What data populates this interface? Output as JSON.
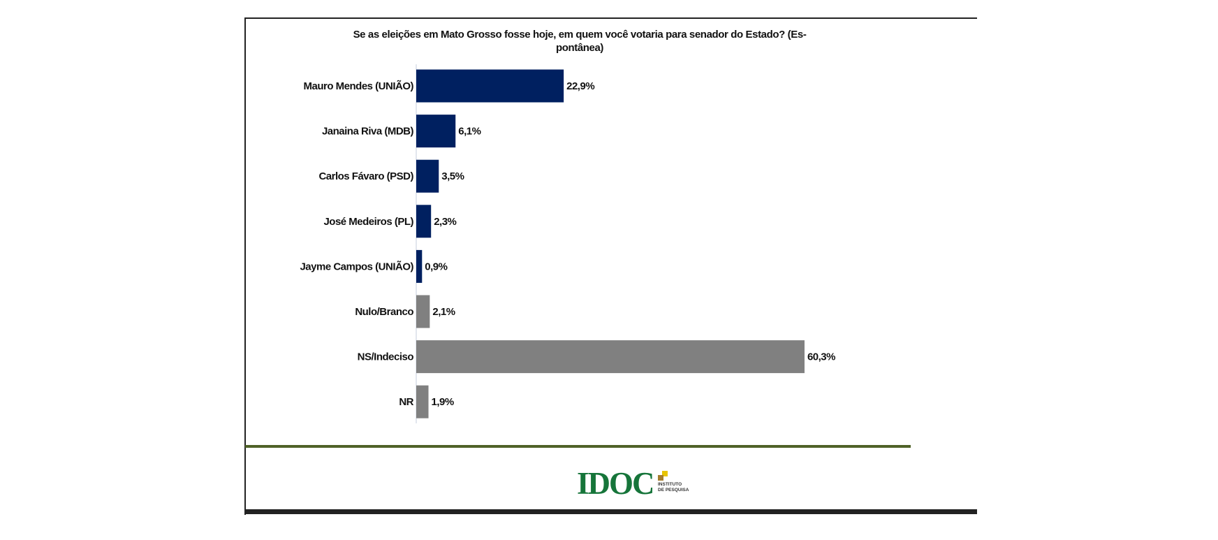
{
  "chart_data": {
    "type": "bar",
    "orientation": "horizontal",
    "title": "Se as eleições em Mato Grosso fosse hoje, em quem você votaria para senador do Estado? (Es-pontânea)",
    "title_lines": [
      "Se as eleições em Mato Grosso fosse hoje, em quem você votaria para senador do Estado? (Es-",
      "pontânea)"
    ],
    "categories": [
      "Mauro Mendes (UNIÃO)",
      "Janaina Riva (MDB)",
      "Carlos Fávaro (PSD)",
      "José Medeiros (PL)",
      "Jayme Campos (UNIÃO)",
      "Nulo/Branco",
      "NS/Indeciso",
      "NR"
    ],
    "values": [
      22.9,
      6.1,
      3.5,
      2.3,
      0.9,
      2.1,
      60.3,
      1.9
    ],
    "value_labels": [
      "22,9%",
      "6,1%",
      "3,5%",
      "2,3%",
      "0,9%",
      "2,1%",
      "60,3%",
      "1,9%"
    ],
    "colors": [
      "#002060",
      "#002060",
      "#002060",
      "#002060",
      "#002060",
      "#808080",
      "#808080",
      "#808080"
    ],
    "xlabel": "",
    "ylabel": "",
    "xlim": [
      0,
      100
    ],
    "grid": false,
    "legend": "none"
  },
  "logo": {
    "name": "IDOC",
    "subtitle_1": "INSTITUTO",
    "subtitle_2": "DE PESQUISA"
  }
}
